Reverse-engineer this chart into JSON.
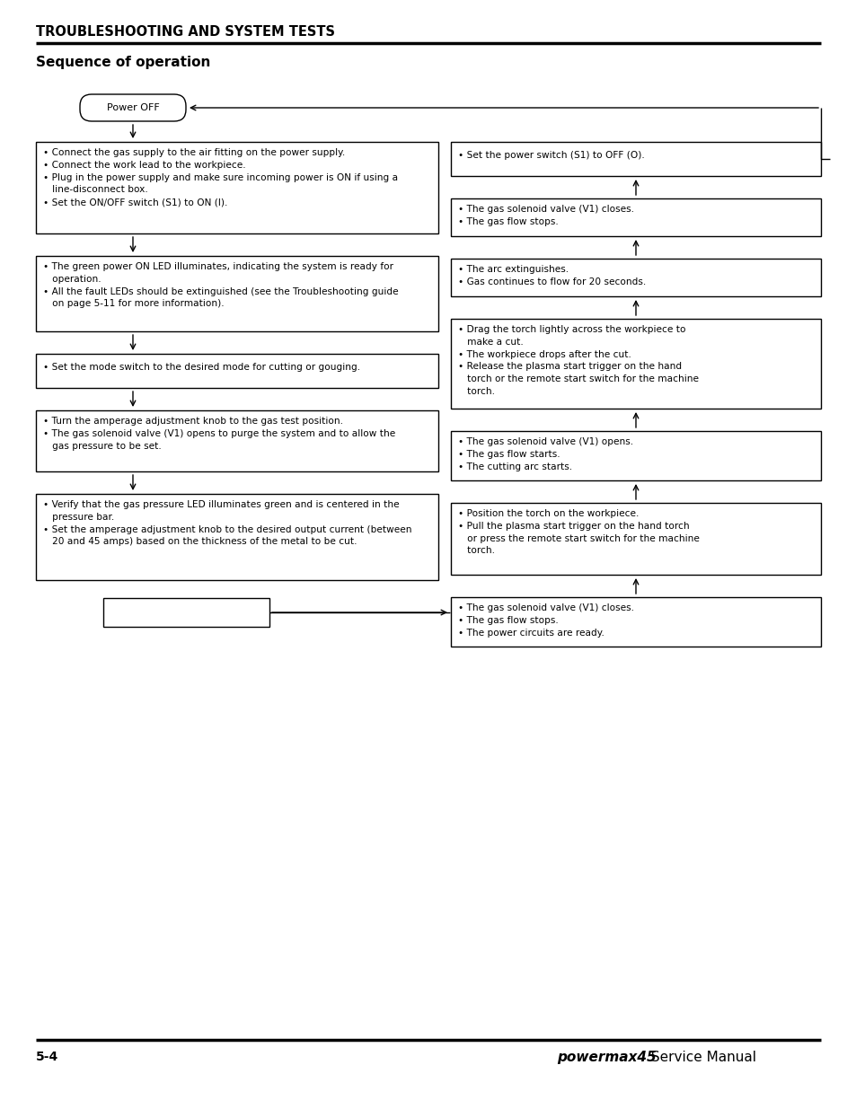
{
  "page_title": "TROUBLESHOOTING AND SYSTEM TESTS",
  "section_title": "Sequence of operation",
  "footer_left": "5-4",
  "footer_right_italic": "powermax45",
  "footer_right_normal": " Service Manual",
  "bg_color": "#ffffff",
  "left_boxes": [
    {
      "label": "box_l1",
      "lines": [
        "• Connect the gas supply to the air fitting on the power supply.",
        "• Connect the work lead to the workpiece.",
        "• Plug in the power supply and make sure incoming power is ON if using a",
        "   line-disconnect box.",
        "• Set the ON/OFF switch (S1) to ON (I)."
      ]
    },
    {
      "label": "box_l2",
      "lines": [
        "• The green power ON LED illuminates, indicating the system is ready for",
        "   operation.",
        "• All the fault LEDs should be extinguished (see the Troubleshooting guide",
        "   on page 5-11 for more information)."
      ]
    },
    {
      "label": "box_l3",
      "lines": [
        "• Set the mode switch to the desired mode for cutting or gouging."
      ]
    },
    {
      "label": "box_l4",
      "lines": [
        "• Turn the amperage adjustment knob to the gas test position.",
        "• The gas solenoid valve (V1) opens to purge the system and to allow the",
        "   gas pressure to be set."
      ]
    },
    {
      "label": "box_l5",
      "lines": [
        "• Verify that the gas pressure LED illuminates green and is centered in the",
        "   pressure bar.",
        "• Set the amperage adjustment knob to the desired output current (between",
        "   20 and 45 amps) based on the thickness of the metal to be cut."
      ]
    }
  ],
  "right_boxes": [
    {
      "label": "box_r1",
      "lines": [
        "• Set the power switch (S1) to OFF (O)."
      ]
    },
    {
      "label": "box_r2",
      "lines": [
        "• The gas solenoid valve (V1) closes.",
        "• The gas flow stops."
      ]
    },
    {
      "label": "box_r3",
      "lines": [
        "• The arc extinguishes.",
        "• Gas continues to flow for 20 seconds."
      ]
    },
    {
      "label": "box_r4",
      "lines": [
        "• Drag the torch lightly across the workpiece to",
        "   make a cut.",
        "• The workpiece drops after the cut.",
        "• Release the plasma start trigger on the hand",
        "   torch or the remote start switch for the machine",
        "   torch."
      ]
    },
    {
      "label": "box_r5",
      "lines": [
        "• The gas solenoid valve (V1) opens.",
        "• The gas flow starts.",
        "• The cutting arc starts."
      ]
    },
    {
      "label": "box_r6",
      "lines": [
        "• Position the torch on the workpiece.",
        "• Pull the plasma start trigger on the hand torch",
        "   or press the remote start switch for the machine",
        "   torch."
      ]
    },
    {
      "label": "box_r7",
      "lines": [
        "• The gas solenoid valve (V1) closes.",
        "• The gas flow stops.",
        "• The power circuits are ready."
      ]
    }
  ]
}
